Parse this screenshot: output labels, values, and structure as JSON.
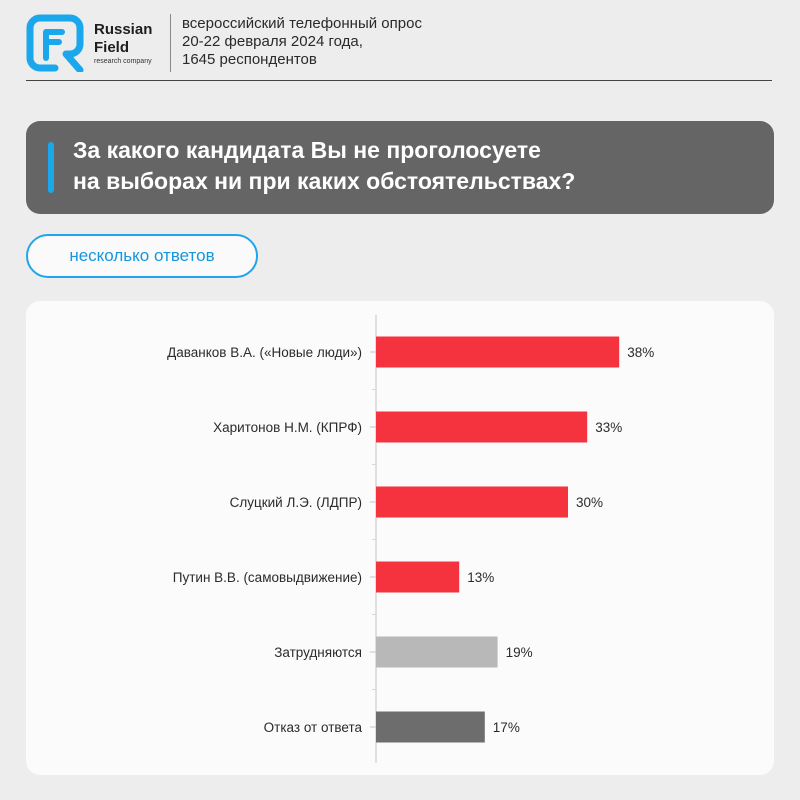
{
  "brand": {
    "name_line1": "Russian",
    "name_line2": "Field",
    "tagline": "research company",
    "logo_color": "#1aa7ec"
  },
  "survey": {
    "line1": "всероссийский телефонный опрос",
    "line2": "20-22 февраля 2024 года,",
    "line3": "1645 респондентов"
  },
  "question": {
    "line1": "За какого кандидата Вы не проголосуете",
    "line2": "на выборах ни при каких обстоятельствах?"
  },
  "answer_type": "несколько ответов",
  "colors": {
    "accent": "#1aa7ec",
    "candidate_bar": "#f5333f",
    "undecided_bar": "#b8b8b8",
    "refusal_bar": "#6d6d6d"
  },
  "chart_data": {
    "type": "bar",
    "orientation": "horizontal",
    "categories": [
      "Даванков В.А. («Новые люди»)",
      "Харитонов Н.М. (КПРФ)",
      "Слуцкий Л.Э. (ЛДПР)",
      "Путин В.В. (самовыдвижение)",
      "Затрудняются",
      "Отказ от ответа"
    ],
    "values": [
      38,
      33,
      30,
      13,
      19,
      17
    ],
    "value_labels": [
      "38%",
      "33%",
      "30%",
      "13%",
      "19%",
      "17%"
    ],
    "bar_colors": [
      "#f5333f",
      "#f5333f",
      "#f5333f",
      "#f5333f",
      "#b8b8b8",
      "#6d6d6d"
    ],
    "unit": "%",
    "title": "",
    "xlabel": "",
    "ylabel": "",
    "grid": false,
    "legend": "none"
  }
}
